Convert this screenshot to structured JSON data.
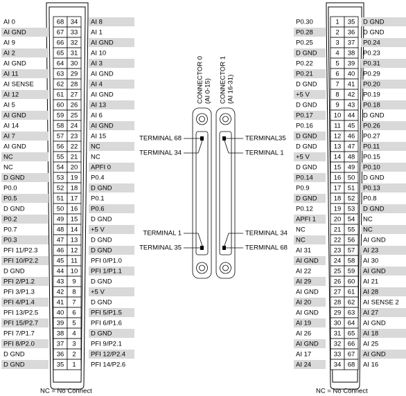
{
  "left_connector": {
    "rows": [
      [
        "AI 0",
        68,
        34,
        "AI 8"
      ],
      [
        "AI GND",
        67,
        33,
        "AI 1"
      ],
      [
        "AI 9",
        66,
        32,
        "AI GND"
      ],
      [
        "AI 2",
        65,
        31,
        "AI 10"
      ],
      [
        "AI GND",
        64,
        30,
        "AI 3"
      ],
      [
        "AI 11",
        63,
        29,
        "AI GND"
      ],
      [
        "AI SENSE",
        62,
        28,
        "AI 4"
      ],
      [
        "AI 12",
        61,
        27,
        "AI GND"
      ],
      [
        "AI 5",
        60,
        26,
        "AI 13"
      ],
      [
        "AI GND",
        59,
        25,
        "AI 6"
      ],
      [
        "AI 14",
        58,
        24,
        "AI GND"
      ],
      [
        "AI 7",
        57,
        23,
        "AI 15"
      ],
      [
        "AI GND",
        56,
        22,
        "NC"
      ],
      [
        "NC",
        55,
        21,
        "NC"
      ],
      [
        "NC",
        54,
        20,
        "APFI 0"
      ],
      [
        "D GND",
        53,
        19,
        "P0.4"
      ],
      [
        "P0.0",
        52,
        18,
        "D GND"
      ],
      [
        "P0.5",
        51,
        17,
        "P0.1"
      ],
      [
        "D GND",
        50,
        16,
        "P0.6"
      ],
      [
        "P0.2",
        49,
        15,
        "D GND"
      ],
      [
        "P0.7",
        48,
        14,
        "+5 V"
      ],
      [
        "P0.3",
        47,
        13,
        "D GND"
      ],
      [
        "PFI 11/P2.3",
        46,
        12,
        "D GND"
      ],
      [
        "PFI 10/P2.2",
        45,
        11,
        "PFI 0/P1.0"
      ],
      [
        "D GND",
        44,
        10,
        "PFI 1/P1.1"
      ],
      [
        "PFI 2/P1.2",
        43,
        9,
        "D GND"
      ],
      [
        "PFI 3/P1.3",
        42,
        8,
        "+5 V"
      ],
      [
        "PFI 4/P1.4",
        41,
        7,
        "D GND"
      ],
      [
        "PFI 13/P2.5",
        40,
        6,
        "PFI 5/P1.5"
      ],
      [
        "PFI 15/P2.7",
        39,
        5,
        "PFI 6/P1.6"
      ],
      [
        "PFI 7/P1.7",
        38,
        4,
        "D GND"
      ],
      [
        "PFI 8/P2.0",
        37,
        3,
        "PFI 9/P2.1"
      ],
      [
        "D GND",
        36,
        2,
        "PFI 12/P2.4"
      ],
      [
        "D GND",
        35,
        1,
        "PFI 14/P2.6"
      ]
    ]
  },
  "right_connector": {
    "rows": [
      [
        "P0.30",
        1,
        35,
        "D GND"
      ],
      [
        "P0.28",
        2,
        36,
        "D GND"
      ],
      [
        "P0.25",
        3,
        37,
        "P0.24"
      ],
      [
        "D GND",
        4,
        38,
        "P0.23"
      ],
      [
        "P0.22",
        5,
        39,
        "P0.31"
      ],
      [
        "P0.21",
        6,
        40,
        "P0.29"
      ],
      [
        "D GND",
        7,
        41,
        "P0.20"
      ],
      [
        "+5 V",
        8,
        42,
        "P0.19"
      ],
      [
        "D GND",
        9,
        43,
        "P0.18"
      ],
      [
        "P0.17",
        10,
        44,
        "D GND"
      ],
      [
        "P0.16",
        11,
        45,
        "P0.26"
      ],
      [
        "D GND",
        12,
        46,
        "P0.27"
      ],
      [
        "D GND",
        13,
        47,
        "P0.11"
      ],
      [
        "+5 V",
        14,
        48,
        "P0.15"
      ],
      [
        "D GND",
        15,
        49,
        "P0.10"
      ],
      [
        "P0.14",
        16,
        50,
        "D GND"
      ],
      [
        "P0.9",
        17,
        51,
        "P0.13"
      ],
      [
        "D GND",
        18,
        52,
        "P0.8"
      ],
      [
        "P0.12",
        19,
        53,
        "D GND"
      ],
      [
        "APFI 1",
        20,
        54,
        "NC"
      ],
      [
        "NC",
        21,
        55,
        "NC"
      ],
      [
        "NC",
        22,
        56,
        "AI GND"
      ],
      [
        "AI 31",
        23,
        57,
        "AI 23"
      ],
      [
        "AI GND",
        24,
        58,
        "AI 30"
      ],
      [
        "AI 22",
        25,
        59,
        "AI GND"
      ],
      [
        "AI 29",
        26,
        60,
        "AI 21"
      ],
      [
        "AI GND",
        27,
        61,
        "AI 28"
      ],
      [
        "AI 20",
        28,
        62,
        "AI SENSE 2"
      ],
      [
        "AI GND",
        29,
        63,
        "AI 27"
      ],
      [
        "AI 19",
        30,
        64,
        "AI GND"
      ],
      [
        "AI 26",
        31,
        65,
        "AI 18"
      ],
      [
        "AI GND",
        32,
        66,
        "AI 25"
      ],
      [
        "AI 17",
        33,
        67,
        "AI GND"
      ],
      [
        "AI 24",
        34,
        68,
        "AI 16"
      ]
    ]
  },
  "center": {
    "connector_0": {
      "name": "CONNECTOR 0",
      "range": "(AI 0-15)"
    },
    "connector_1": {
      "name": "CONNECTOR 1",
      "range": "(AI 16-31)"
    },
    "left_terminals": [
      "TERMINAL 68",
      "TERMINAL 34",
      "TERMINAL 1",
      "TERMINAL 35"
    ],
    "right_terminals": [
      "TERMINAL35",
      "TERMINAL 1",
      "TERMINAL 34",
      "TERMINAL 68"
    ]
  },
  "footer": {
    "left_note": "NC = No Connect",
    "right_note": "NC = No Connect"
  }
}
